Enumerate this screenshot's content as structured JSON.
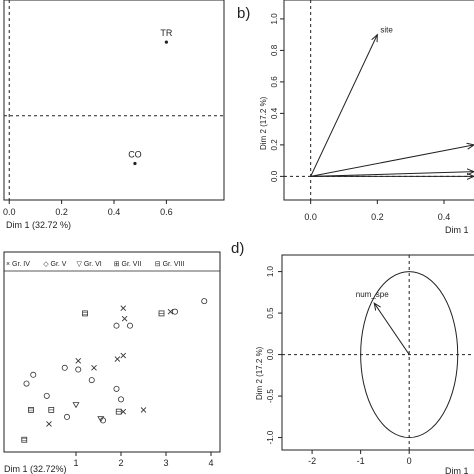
{
  "chart_data": [
    {
      "panel": "a",
      "type": "scatter",
      "title": "",
      "xlabel": "Dim 1 (32.72 %)",
      "ylabel": "",
      "xlim": [
        -0.02,
        0.82
      ],
      "ylim": [
        -1.2,
        1.65
      ],
      "x_ticks": [
        0.0,
        0.2,
        0.4,
        0.6
      ],
      "x_tick_labels": [
        "0.0",
        "0.2",
        "0.4",
        "0.6"
      ],
      "ref_lines": {
        "vertical_x": 0.0,
        "horizontal_y": 0.0
      },
      "points": [
        {
          "label": "TR",
          "x": 0.6,
          "y": 1.05
        },
        {
          "label": "CO",
          "x": 0.48,
          "y": -0.68
        }
      ]
    },
    {
      "panel": "b",
      "panel_label": "b)",
      "type": "scatter",
      "title": "",
      "xlabel": "Dim 1",
      "ylabel": "Dim 2 (17.2 %)",
      "xlim": [
        -0.08,
        0.52
      ],
      "ylim": [
        -0.15,
        1.12
      ],
      "x_ticks": [
        0.0,
        0.2,
        0.4
      ],
      "x_tick_labels": [
        "0.0",
        "0.2",
        "0.4"
      ],
      "y_ticks": [
        0.0,
        0.2,
        0.4,
        0.6,
        0.8,
        1.0
      ],
      "y_tick_labels": [
        "0.0",
        "0.2",
        "0.4",
        "0.6",
        "0.8",
        "1.0"
      ],
      "ref_lines": {
        "vertical_x": 0.0,
        "horizontal_y": 0.0
      },
      "arrows": [
        {
          "label": "site",
          "x": 0.2,
          "y": 0.9
        },
        {
          "label": "",
          "x": 0.56,
          "y": 0.2
        },
        {
          "label": "",
          "x": 0.56,
          "y": 0.03
        },
        {
          "label": "",
          "x": 0.56,
          "y": 0.0
        }
      ]
    },
    {
      "panel": "c",
      "type": "scatter",
      "title": "",
      "xlabel": "Dim 1 (32.72%)",
      "ylabel": "",
      "xlim": [
        -0.6,
        4.2
      ],
      "ylim": [
        -2.4,
        3.3
      ],
      "x_ticks": [
        1,
        2,
        3,
        4
      ],
      "x_tick_labels": [
        "1",
        "2",
        "3",
        "4"
      ],
      "legend": "top",
      "legend_entries": [
        {
          "marker": "×",
          "label": "Gr. IV"
        },
        {
          "marker": "◇",
          "label": "Gr. V"
        },
        {
          "marker": "▽",
          "label": "Gr. VI"
        },
        {
          "marker": "⊞",
          "label": "Gr. VII"
        },
        {
          "marker": "⊟",
          "label": "Gr. VIII"
        }
      ],
      "points": [
        {
          "group": "Gr. IV",
          "x": 2.05,
          "y": 1.7
        },
        {
          "group": "Gr. IV",
          "x": 2.08,
          "y": 1.4
        },
        {
          "group": "Gr. IV",
          "x": 3.1,
          "y": 1.6
        },
        {
          "group": "Gr. IV",
          "x": 1.05,
          "y": 0.2
        },
        {
          "group": "Gr. IV",
          "x": 1.4,
          "y": 0.0
        },
        {
          "group": "Gr. IV",
          "x": 1.92,
          "y": 0.25
        },
        {
          "group": "Gr. IV",
          "x": 2.05,
          "y": 0.35
        },
        {
          "group": "Gr. IV",
          "x": 2.5,
          "y": -1.2
        },
        {
          "group": "Gr. IV",
          "x": 0.4,
          "y": -1.6
        },
        {
          "group": "Gr. IV",
          "x": 2.05,
          "y": -1.25
        },
        {
          "group": "Gr. V",
          "x": 3.85,
          "y": 1.9
        },
        {
          "group": "Gr. V",
          "x": 3.2,
          "y": 1.6
        },
        {
          "group": "Gr. V",
          "x": 2.2,
          "y": 1.2
        },
        {
          "group": "Gr. V",
          "x": 1.9,
          "y": 1.2
        },
        {
          "group": "Gr. V",
          "x": 1.05,
          "y": -0.05
        },
        {
          "group": "Gr. V",
          "x": 0.75,
          "y": 0.0
        },
        {
          "group": "Gr. V",
          "x": 1.35,
          "y": -0.35
        },
        {
          "group": "Gr. V",
          "x": 1.9,
          "y": -0.6
        },
        {
          "group": "Gr. V",
          "x": 1.6,
          "y": -1.5
        },
        {
          "group": "Gr. V",
          "x": 0.05,
          "y": -0.2
        },
        {
          "group": "Gr. V",
          "x": -0.1,
          "y": -0.45
        },
        {
          "group": "Gr. V",
          "x": 0.35,
          "y": -0.8
        },
        {
          "group": "Gr. V",
          "x": 0.8,
          "y": -1.4
        },
        {
          "group": "Gr. V",
          "x": 2.0,
          "y": -0.9
        },
        {
          "group": "Gr. VI",
          "x": 1.0,
          "y": -1.05
        },
        {
          "group": "Gr. VI",
          "x": 1.55,
          "y": -1.45
        },
        {
          "group": "Gr. VII",
          "x": 2.9,
          "y": 1.55
        },
        {
          "group": "Gr. VII",
          "x": 0.45,
          "y": -1.2
        },
        {
          "group": "Gr. VII",
          "x": 1.95,
          "y": -1.25
        },
        {
          "group": "Gr. VIII",
          "x": 0.0,
          "y": -1.2
        },
        {
          "group": "Gr. VIII",
          "x": -0.15,
          "y": -2.05
        },
        {
          "group": "Gr. VIII",
          "x": 1.2,
          "y": 1.55
        }
      ]
    },
    {
      "panel": "d",
      "panel_label": "d)",
      "type": "scatter",
      "title": "",
      "xlabel": "Dim 1",
      "ylabel": "Dim 2 (17.2 %)",
      "xlim": [
        -2.62,
        1.5
      ],
      "ylim": [
        -1.15,
        1.2
      ],
      "x_ticks": [
        -2,
        -1,
        0
      ],
      "x_tick_labels": [
        "-2",
        "-1",
        "0"
      ],
      "y_ticks": [
        -1.0,
        -0.5,
        0.0,
        0.5,
        1.0
      ],
      "y_tick_labels": [
        "-1.0",
        "-0.5",
        "0.0",
        "0.5",
        "1.0"
      ],
      "ref_lines": {
        "vertical_x": 0.0,
        "horizontal_y": 0.0
      },
      "unit_circle": true,
      "arrows": [
        {
          "label": "num_spe",
          "x": -0.72,
          "y": 0.62
        }
      ]
    }
  ]
}
